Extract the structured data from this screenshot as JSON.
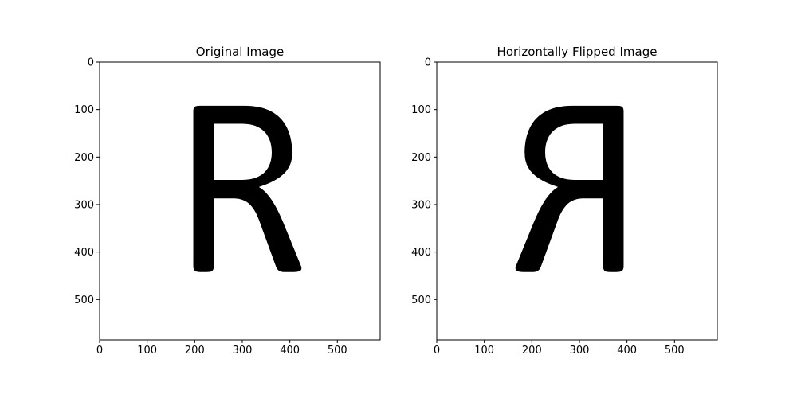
{
  "chart_data": [
    {
      "type": "image",
      "title": "Original Image",
      "glyph": "R",
      "mirrored": false,
      "image_width": 590,
      "image_height": 585,
      "xlim": [
        0,
        590
      ],
      "ylim": [
        585,
        0
      ],
      "xticks": [
        0,
        100,
        200,
        300,
        400,
        500
      ],
      "yticks": [
        0,
        100,
        200,
        300,
        400,
        500
      ],
      "grid": false,
      "colors": {
        "background": "#ffffff",
        "glyph": "#000000"
      }
    },
    {
      "type": "image",
      "title": "Horizontally Flipped Image",
      "glyph": "R",
      "mirrored": true,
      "image_width": 590,
      "image_height": 585,
      "xlim": [
        0,
        590
      ],
      "ylim": [
        585,
        0
      ],
      "xticks": [
        0,
        100,
        200,
        300,
        400,
        500
      ],
      "yticks": [
        0,
        100,
        200,
        300,
        400,
        500
      ],
      "grid": false,
      "colors": {
        "background": "#ffffff",
        "glyph": "#000000"
      }
    }
  ]
}
